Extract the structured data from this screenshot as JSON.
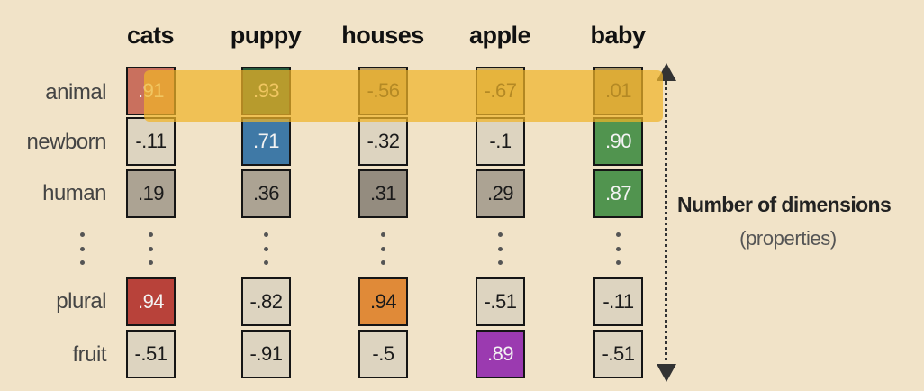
{
  "words": [
    "cats",
    "puppy",
    "houses",
    "apple",
    "baby"
  ],
  "dimensions": [
    "animal",
    "newborn",
    "human",
    "plural",
    "fruit"
  ],
  "values": [
    [
      ".91",
      "-.11",
      ".19",
      ".94",
      "-.51"
    ],
    [
      ".93",
      ".71",
      ".36",
      "-.82",
      "-.91"
    ],
    [
      "-.56",
      "-.32",
      ".31",
      ".94",
      "-.5"
    ],
    [
      "-.67",
      "-.1",
      ".29",
      "-.51",
      ".89"
    ],
    [
      ".01",
      ".90",
      ".87",
      "-.11",
      "-.51"
    ]
  ],
  "cell_colors": [
    [
      "#c9705e",
      "#ddd4c0",
      "#aca393",
      "#b8423a",
      "#ddd4c0"
    ],
    [
      "#265a3c",
      "#3f79a6",
      "#aca393",
      "#ddd4c0",
      "#ddd4c0"
    ],
    [
      "#b99f69",
      "#ddd4c0",
      "#948c7f",
      "#e08a38",
      "#ddd4c0"
    ],
    [
      "#cbb275",
      "#ddd4c0",
      "#aca393",
      "#ddd4c0",
      "#9b3ab0"
    ],
    [
      "#a8925f",
      "#51944f",
      "#51944f",
      "#ddd4c0",
      "#ddd4c0"
    ]
  ],
  "axis": {
    "title": "Number of dimensions",
    "subtitle": "(properties)"
  },
  "highlight_color": "#f0b428"
}
